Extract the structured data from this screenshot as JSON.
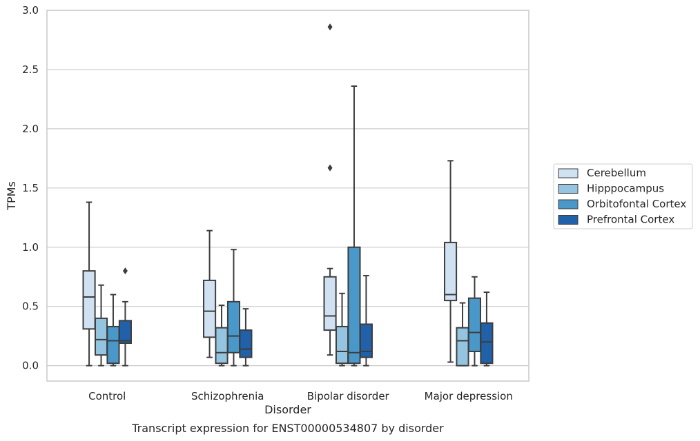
{
  "chart_data": {
    "type": "boxplot",
    "caption": "Transcript expression for ENST00000534807 by disorder",
    "xlabel": "Disorder",
    "ylabel": "TPMs",
    "ylim": [
      -0.13,
      3.0
    ],
    "yticks": [
      0.0,
      0.5,
      1.0,
      1.5,
      2.0,
      2.5,
      3.0
    ],
    "ytick_labels": [
      "0.0",
      "0.5",
      "1.0",
      "1.5",
      "2.0",
      "2.5",
      "3.0"
    ],
    "grid": "horizontal",
    "legend_placement": "right",
    "categories": [
      "Control",
      "Schizophrenia",
      "Bipolar disorder",
      "Major depression"
    ],
    "series": [
      {
        "name": "Cerebellum",
        "color": "#d0e1f2",
        "boxes": [
          {
            "whislo": 0.0,
            "q1": 0.31,
            "med": 0.58,
            "q3": 0.8,
            "whishi": 1.38,
            "fliers": []
          },
          {
            "whislo": 0.07,
            "q1": 0.24,
            "med": 0.46,
            "q3": 0.72,
            "whishi": 1.14,
            "fliers": []
          },
          {
            "whislo": 0.09,
            "q1": 0.3,
            "med": 0.42,
            "q3": 0.75,
            "whishi": 0.82,
            "fliers": [
              1.67,
              2.86
            ]
          },
          {
            "whislo": 0.03,
            "q1": 0.55,
            "med": 0.6,
            "q3": 1.04,
            "whishi": 1.73,
            "fliers": []
          }
        ]
      },
      {
        "name": "Hipppocampus",
        "color": "#94c4df",
        "boxes": [
          {
            "whislo": 0.0,
            "q1": 0.09,
            "med": 0.22,
            "q3": 0.4,
            "whishi": 0.68,
            "fliers": []
          },
          {
            "whislo": 0.0,
            "q1": 0.02,
            "med": 0.11,
            "q3": 0.32,
            "whishi": 0.51,
            "fliers": []
          },
          {
            "whislo": 0.0,
            "q1": 0.02,
            "med": 0.12,
            "q3": 0.33,
            "whishi": 0.61,
            "fliers": []
          },
          {
            "whislo": 0.0,
            "q1": 0.0,
            "med": 0.21,
            "q3": 0.32,
            "whishi": 0.53,
            "fliers": []
          }
        ]
      },
      {
        "name": "Orbitofontal Cortex",
        "color": "#4a98c9",
        "boxes": [
          {
            "whislo": 0.0,
            "q1": 0.02,
            "med": 0.21,
            "q3": 0.33,
            "whishi": 0.6,
            "fliers": []
          },
          {
            "whislo": 0.0,
            "q1": 0.11,
            "med": 0.25,
            "q3": 0.54,
            "whishi": 0.98,
            "fliers": []
          },
          {
            "whislo": 0.0,
            "q1": 0.02,
            "med": 0.11,
            "q3": 1.0,
            "whishi": 2.36,
            "fliers": []
          },
          {
            "whislo": 0.0,
            "q1": 0.12,
            "med": 0.28,
            "q3": 0.57,
            "whishi": 0.75,
            "fliers": []
          }
        ]
      },
      {
        "name": "Prefrontal Cortex",
        "color": "#2061a9",
        "boxes": [
          {
            "whislo": 0.0,
            "q1": 0.19,
            "med": 0.21,
            "q3": 0.38,
            "whishi": 0.54,
            "fliers": [
              0.8
            ]
          },
          {
            "whislo": 0.0,
            "q1": 0.07,
            "med": 0.14,
            "q3": 0.3,
            "whishi": 0.48,
            "fliers": []
          },
          {
            "whislo": 0.0,
            "q1": 0.07,
            "med": 0.12,
            "q3": 0.35,
            "whishi": 0.76,
            "fliers": []
          },
          {
            "whislo": 0.0,
            "q1": 0.02,
            "med": 0.2,
            "q3": 0.36,
            "whishi": 0.62,
            "fliers": []
          }
        ]
      }
    ]
  }
}
